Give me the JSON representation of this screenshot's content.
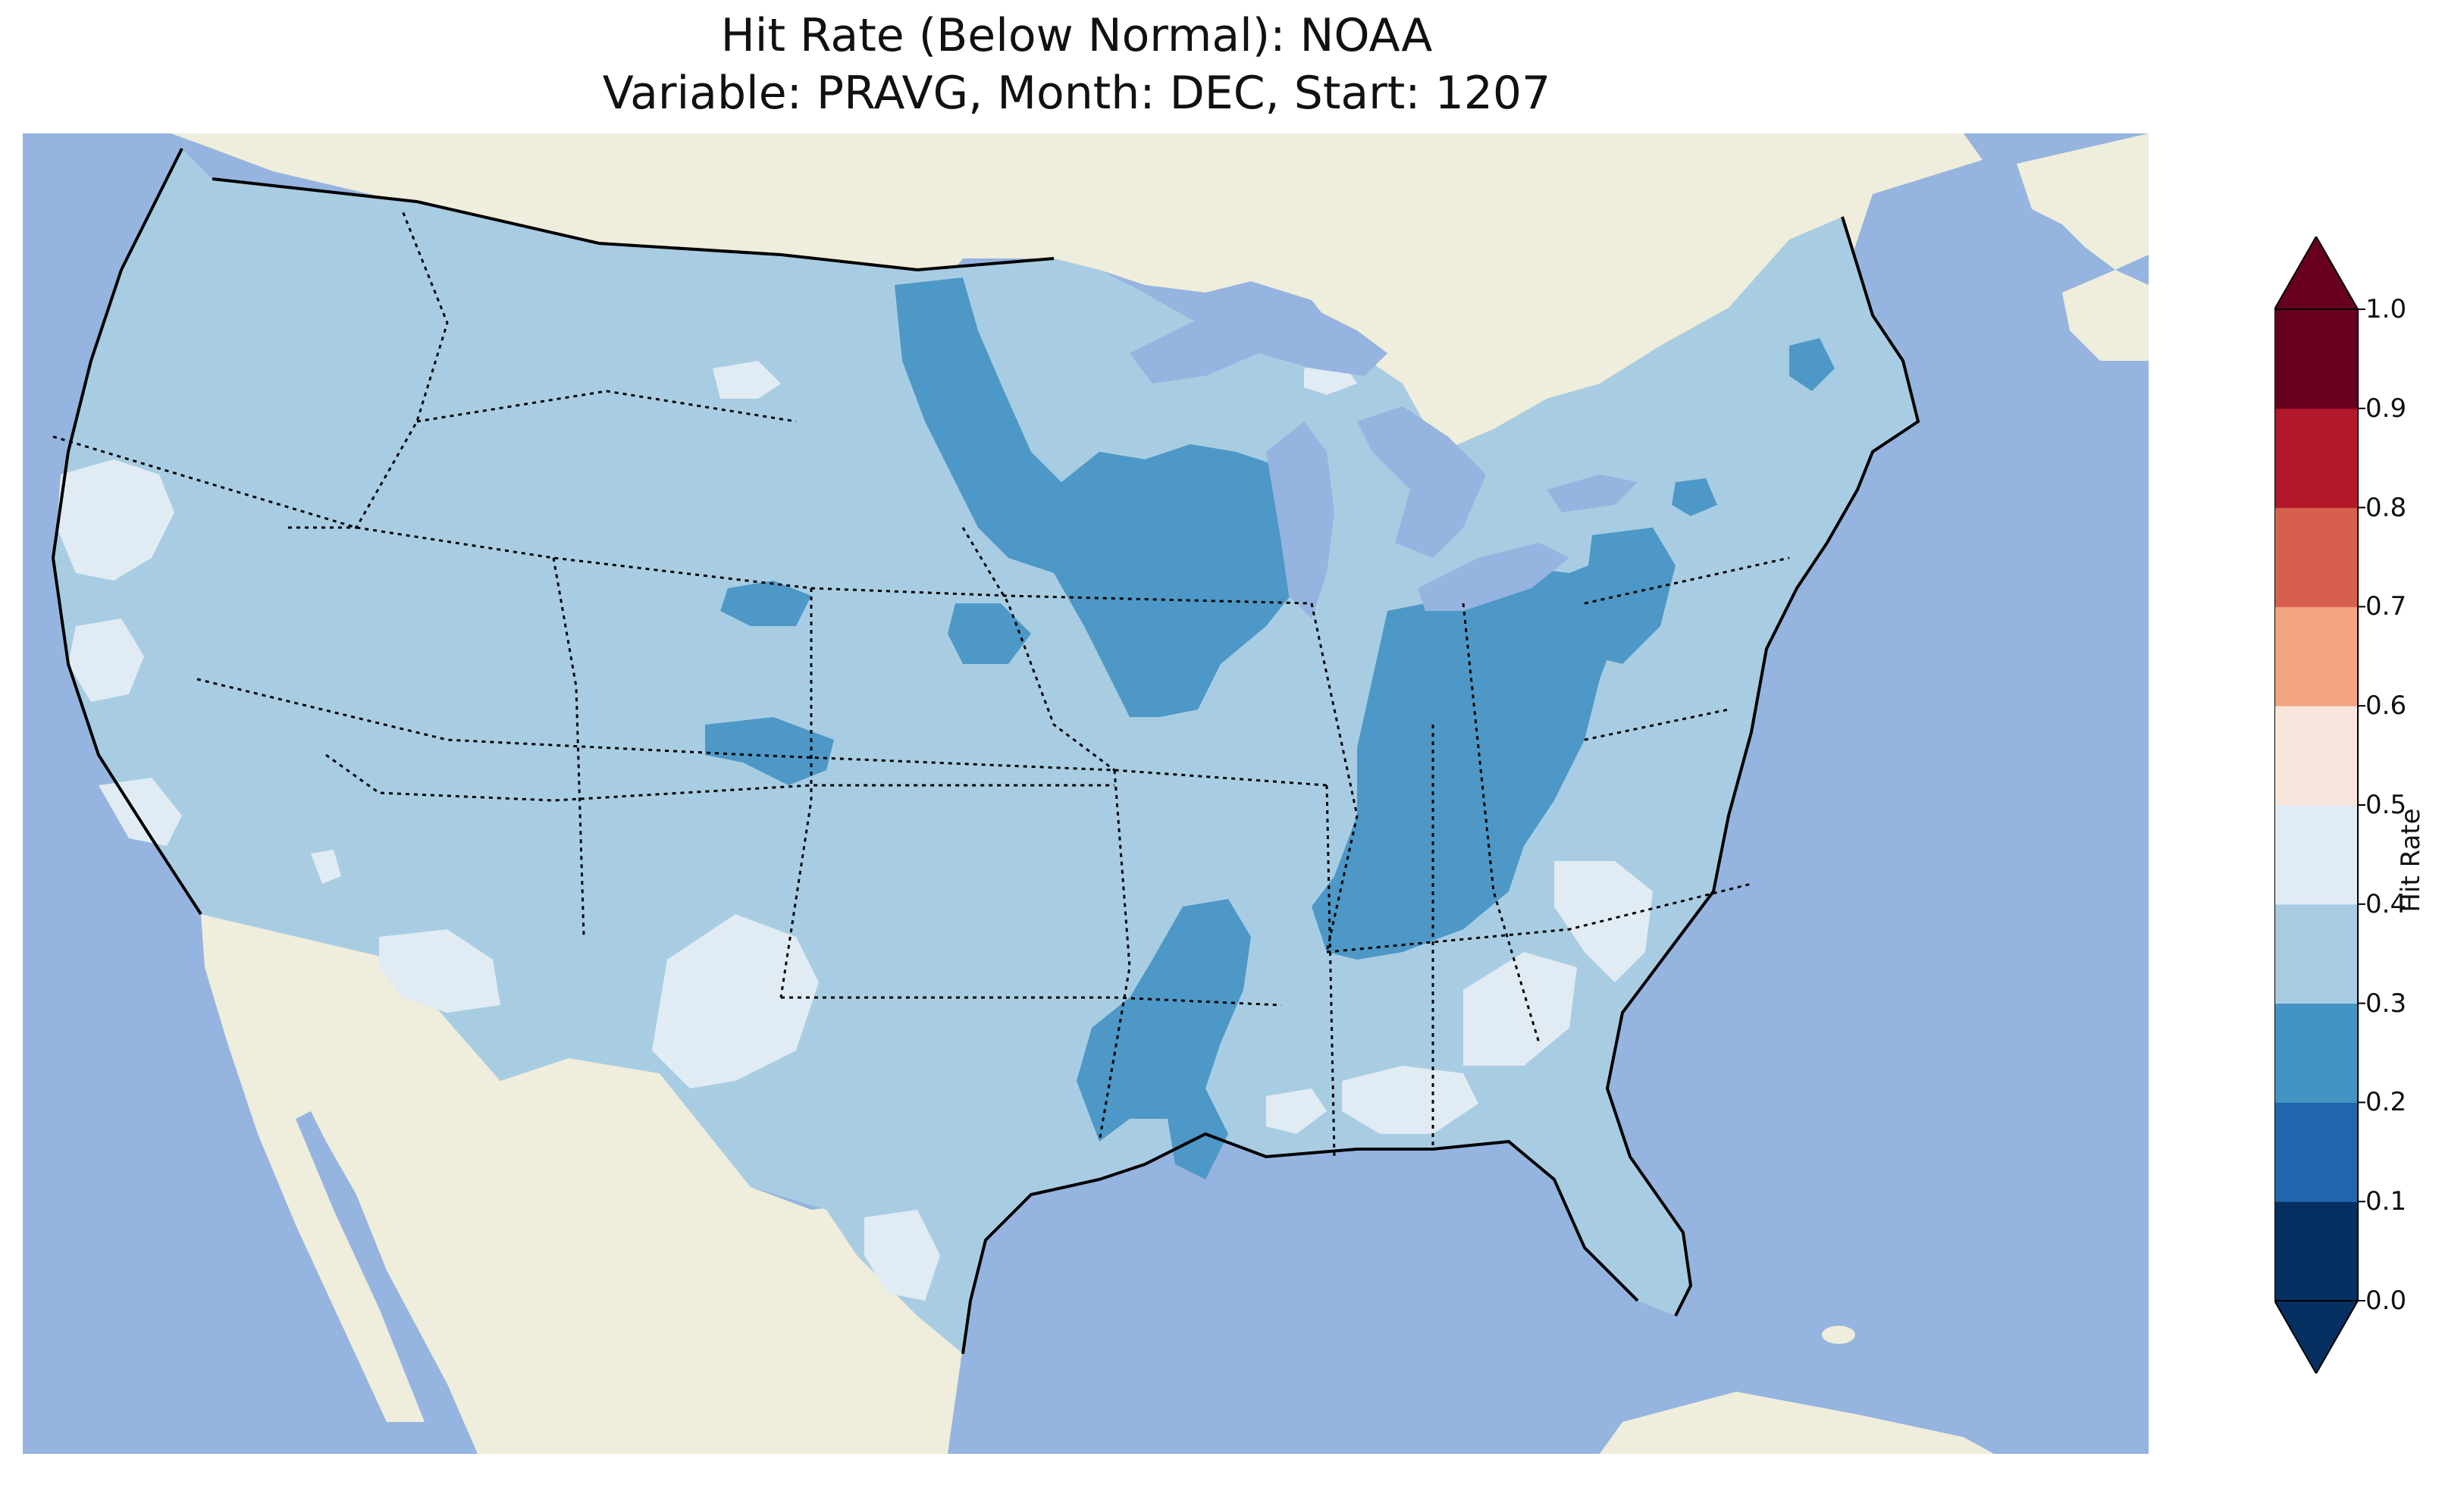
{
  "title": {
    "line1": "Hit Rate (Below Normal): NOAA",
    "line2": "Variable: PRAVG, Month: DEC, Start: 1207"
  },
  "colors": {
    "ocean": "#95b4df",
    "land": "#efeddb",
    "lakes": "#95b4df"
  },
  "colorbar": {
    "label": "Hit Rate",
    "ticks": [
      "0.0",
      "0.1",
      "0.2",
      "0.3",
      "0.4",
      "0.5",
      "0.6",
      "0.7",
      "0.8",
      "0.9",
      "1.0"
    ],
    "bins": [
      {
        "range": [
          0.0,
          0.1
        ],
        "color": "#053061"
      },
      {
        "range": [
          0.1,
          0.2
        ],
        "color": "#2166ac"
      },
      {
        "range": [
          0.2,
          0.3
        ],
        "color": "#4393c3"
      },
      {
        "range": [
          0.3,
          0.4
        ],
        "color": "#a8cde3"
      },
      {
        "range": [
          0.4,
          0.5
        ],
        "color": "#e1ebf3"
      },
      {
        "range": [
          0.5,
          0.6
        ],
        "color": "#f8e6dc"
      },
      {
        "range": [
          0.6,
          0.7
        ],
        "color": "#f4a582"
      },
      {
        "range": [
          0.7,
          0.8
        ],
        "color": "#d6604d"
      },
      {
        "range": [
          0.8,
          0.9
        ],
        "color": "#b2182b"
      },
      {
        "range": [
          0.9,
          1.0
        ],
        "color": "#67001f"
      }
    ],
    "extend": "both"
  },
  "map_data": {
    "region": "Contiguous United States",
    "variable": "PRAVG",
    "month": "DEC",
    "start": "1207",
    "background_bin": "0.3-0.4",
    "regions_0_2_to_0_3": [
      "Minnesota / Wisconsin / Iowa",
      "Indiana / Ohio / Kentucky",
      "Arkansas / Louisiana",
      "Western Pennsylvania",
      "Northeastern Colorado",
      "South-central Nebraska",
      "Southwestern Kansas",
      "Northern Vermont"
    ],
    "regions_0_4_to_0_5": [
      "Northern California coast",
      "Central California",
      "Southern California coast",
      "Southern Arizona",
      "Southern New Mexico",
      "Southern Texas",
      "South Carolina",
      "Georgia",
      "Florida Panhandle",
      "Southeast Montana",
      "Northern Michigan"
    ]
  }
}
